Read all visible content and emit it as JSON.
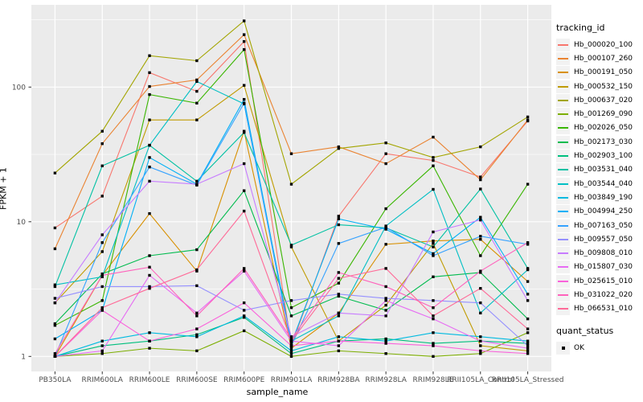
{
  "figure": {
    "x_axis_title": "sample_name",
    "y_axis_title": "FPKM + 1"
  },
  "legend": {
    "tracking_title": "tracking_id",
    "quant_title": "quant_status",
    "quant_items": [
      {
        "label": "OK",
        "marker": "black-square"
      }
    ]
  },
  "chart_data": {
    "type": "line",
    "title": "",
    "xlabel": "sample_name",
    "ylabel": "FPKM + 1",
    "yscale": "log10",
    "y_ticks": [
      1,
      10,
      100
    ],
    "y_tick_labels": [
      "1",
      "10",
      "100"
    ],
    "y_minor_ticks": [
      3.162,
      31.62,
      316.2
    ],
    "ylim": [
      0.77,
      406
    ],
    "grid": true,
    "legend_position": "right",
    "panel_bg": "#EBEBEB",
    "grid_color": "#FFFFFF",
    "axis_text_color": "#4D4D4D",
    "tick_color": "#333333",
    "marker": {
      "shape": "square",
      "color": "#000000",
      "size": 3.4
    },
    "x_categories": [
      "PB350LA",
      "RRIM600LA",
      "RRIM600LE",
      "RRIM600SE",
      "RRIM600PE",
      "RRIM901LA",
      "RRIM928BA",
      "RRIM928LA",
      "RRIM928LE",
      "RRII105LA_Control",
      "RRII105LA_Stressed"
    ],
    "series": [
      {
        "name": "Hb_000020_100",
        "color": "#F8766D",
        "values": [
          9.0,
          15.5,
          128,
          93,
          218,
          1.2,
          11,
          32,
          28.5,
          21.5,
          56
        ]
      },
      {
        "name": "Hb_000107_260",
        "color": "#EA8331",
        "values": [
          6.3,
          38,
          101,
          113,
          245,
          32,
          36,
          27,
          42.5,
          20.5,
          57
        ]
      },
      {
        "name": "Hb_000191_050",
        "color": "#D89000",
        "values": [
          1.0,
          4.0,
          11.5,
          4.3,
          47,
          1.15,
          2.1,
          6.8,
          7.2,
          7.4,
          3.6
        ]
      },
      {
        "name": "Hb_000532_150",
        "color": "#C09B00",
        "values": [
          2.5,
          6.0,
          57,
          57,
          103,
          6.5,
          1.3,
          2.4,
          6.9,
          1.2,
          1.1
        ]
      },
      {
        "name": "Hb_000637_020",
        "color": "#A3A500",
        "values": [
          23,
          47,
          171,
          157,
          310,
          19,
          35,
          38.5,
          30,
          36,
          60
        ]
      },
      {
        "name": "Hb_001269_090",
        "color": "#7CAE00",
        "values": [
          1.0,
          1.05,
          1.15,
          1.1,
          1.55,
          1.0,
          1.1,
          1.05,
          1.0,
          1.05,
          1.5
        ]
      },
      {
        "name": "Hb_002026_050",
        "color": "#39B600",
        "values": [
          1.7,
          2.6,
          88,
          76,
          190,
          2.3,
          3.5,
          12.5,
          26,
          5.6,
          19
        ]
      },
      {
        "name": "Hb_002173_030",
        "color": "#00BB4E",
        "values": [
          1.75,
          4.1,
          5.6,
          6.2,
          17,
          2.0,
          2.8,
          2.2,
          3.9,
          4.2,
          1.9
        ]
      },
      {
        "name": "Hb_002903_100",
        "color": "#00BF7D",
        "values": [
          1.0,
          1.2,
          1.3,
          1.45,
          1.95,
          1.05,
          1.3,
          1.35,
          1.25,
          1.3,
          1.25
        ]
      },
      {
        "name": "Hb_003531_040",
        "color": "#00C1A3",
        "values": [
          3.3,
          26,
          37,
          20,
          46,
          6.7,
          9.5,
          9.0,
          6.5,
          17.5,
          4.5
        ]
      },
      {
        "name": "Hb_003544_040",
        "color": "#00BFC4",
        "values": [
          3.4,
          3.9,
          37,
          110,
          75,
          1.3,
          2.0,
          9.3,
          17.4,
          2.1,
          4.4
        ]
      },
      {
        "name": "Hb_003849_190",
        "color": "#00BAE0",
        "values": [
          1.0,
          1.3,
          1.5,
          1.4,
          2.0,
          1.1,
          1.4,
          1.3,
          1.5,
          1.4,
          1.3
        ]
      },
      {
        "name": "Hb_004994_250",
        "color": "#00B0F6",
        "values": [
          1.35,
          2.2,
          30,
          19,
          81,
          1.25,
          10.5,
          8.8,
          5.8,
          10.8,
          2.9
        ]
      },
      {
        "name": "Hb_007163_050",
        "color": "#35A2FF",
        "values": [
          1.0,
          7.0,
          25.5,
          18.7,
          76,
          1.2,
          6.9,
          9.1,
          5.6,
          7.8,
          6.8
        ]
      },
      {
        "name": "Hb_009557_050",
        "color": "#9590FF",
        "values": [
          2.7,
          3.3,
          3.3,
          3.35,
          2.2,
          2.6,
          2.9,
          2.7,
          2.6,
          2.5,
          1.2
        ]
      },
      {
        "name": "Hb_009808_010",
        "color": "#C77CFF",
        "values": [
          2.5,
          8.0,
          20,
          19,
          27,
          1.4,
          2.1,
          2.0,
          8.4,
          10.3,
          2.6
        ]
      },
      {
        "name": "Hb_015807_030",
        "color": "#E76BF3",
        "values": [
          1.0,
          1.1,
          4.0,
          2.1,
          4.3,
          1.3,
          1.2,
          2.6,
          1.9,
          1.3,
          1.15
        ]
      },
      {
        "name": "Hb_025615_010",
        "color": "#FA62DB",
        "values": [
          1.0,
          2.2,
          1.3,
          1.6,
          2.5,
          1.2,
          1.3,
          1.25,
          1.2,
          1.1,
          1.05
        ]
      },
      {
        "name": "Hb_031022_020",
        "color": "#FF62BC",
        "values": [
          1.05,
          4.0,
          4.6,
          2.0,
          4.5,
          1.35,
          4.2,
          3.3,
          2.3,
          4.3,
          7.0
        ]
      },
      {
        "name": "Hb_066531_010",
        "color": "#FF6A98",
        "values": [
          1.0,
          2.3,
          3.2,
          4.4,
          12,
          1.3,
          3.8,
          4.5,
          2.0,
          3.2,
          1.6
        ]
      }
    ]
  }
}
